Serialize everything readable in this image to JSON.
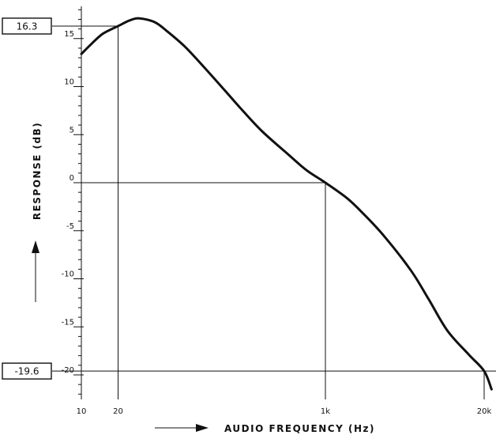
{
  "chart_data": {
    "type": "line",
    "title": "",
    "xlabel": "AUDIO FREQUENCY (Hz)",
    "ylabel": "RESPONSE (dB)",
    "xscale": "log",
    "xlim": [
      10,
      20000
    ],
    "ylim": [
      -22,
      18
    ],
    "x_ticks": [
      {
        "value": 10,
        "label": "10"
      },
      {
        "value": 20,
        "label": "20"
      },
      {
        "value": 1000,
        "label": "1k"
      },
      {
        "value": 20000,
        "label": "20k"
      }
    ],
    "y_ticks": [
      {
        "value": 15,
        "label": "15"
      },
      {
        "value": 10,
        "label": "10"
      },
      {
        "value": 5,
        "label": "5"
      },
      {
        "value": 0,
        "label": "0"
      },
      {
        "value": -5,
        "label": "-5"
      },
      {
        "value": -10,
        "label": "-10"
      },
      {
        "value": -15,
        "label": "-15"
      },
      {
        "value": -20,
        "label": "-20"
      }
    ],
    "grid": false,
    "series": [
      {
        "x": [
          10,
          12,
          15,
          20,
          25,
          30,
          40,
          50,
          70,
          100,
          150,
          200,
          300,
          500,
          700,
          1000,
          1500,
          2000,
          3000,
          5000,
          7000,
          10000,
          15000,
          20000,
          23000
        ],
        "y": [
          13.4,
          14.4,
          15.5,
          16.3,
          16.9,
          17.1,
          16.7,
          15.8,
          14.2,
          12.1,
          9.6,
          7.8,
          5.4,
          2.9,
          1.3,
          0,
          -1.6,
          -3.1,
          -5.5,
          -9.1,
          -12.1,
          -15.4,
          -17.9,
          -19.6,
          -21.5
        ]
      }
    ],
    "reference_lines": [
      {
        "x": 20,
        "y": 16.3
      },
      {
        "x": 1000,
        "y": 0
      },
      {
        "x": 20000,
        "y": -19.6
      }
    ],
    "annotations": [
      "16.3",
      "-19.6"
    ],
    "arrow_direction": {
      "y_axis": "up",
      "x_axis": "right"
    }
  }
}
